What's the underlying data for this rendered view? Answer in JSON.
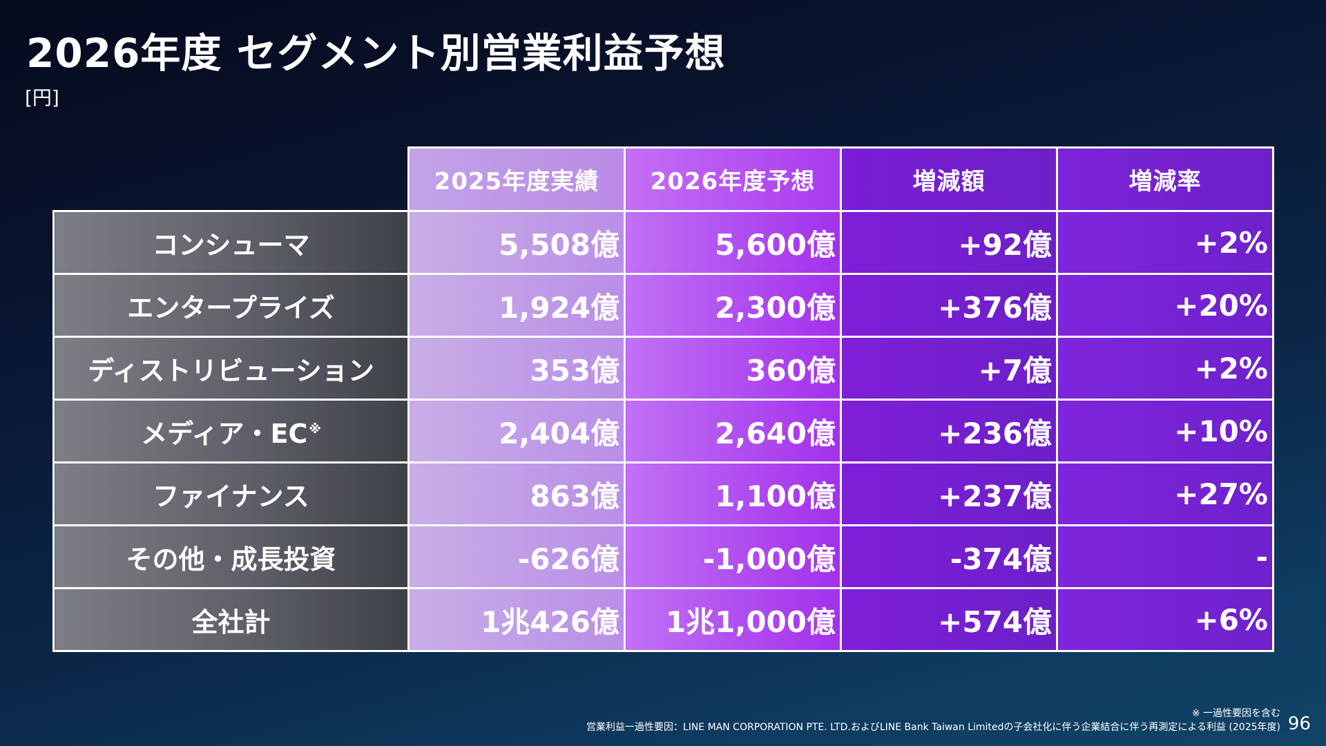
{
  "title": "2026年度 セグメント別営業利益予想",
  "unit": "[円]",
  "table": {
    "headers": [
      "2025年度実績",
      "2026年度予想",
      "増減額",
      "増減率"
    ],
    "rows": [
      {
        "label": "コンシューマ",
        "note_mark": "",
        "v2025": "5,508億",
        "v2026": "5,600億",
        "diff": "+92億",
        "rate": "+2%"
      },
      {
        "label": "エンタープライズ",
        "note_mark": "",
        "v2025": "1,924億",
        "v2026": "2,300億",
        "diff": "+376億",
        "rate": "+20%"
      },
      {
        "label": "ディストリビューション",
        "note_mark": "",
        "v2025": "353億",
        "v2026": "360億",
        "diff": "+7億",
        "rate": "+2%"
      },
      {
        "label": "メディア・EC",
        "note_mark": "※",
        "v2025": "2,404億",
        "v2026": "2,640億",
        "diff": "+236億",
        "rate": "+10%"
      },
      {
        "label": "ファイナンス",
        "note_mark": "",
        "v2025": "863億",
        "v2026": "1,100億",
        "diff": "+237億",
        "rate": "+27%"
      },
      {
        "label": "その他・成長投資",
        "note_mark": "",
        "v2025": "-626億",
        "v2026": "-1,000億",
        "diff": "-374億",
        "rate": "-"
      },
      {
        "label": "全社計",
        "note_mark": "",
        "v2025": "1兆426億",
        "v2026": "1兆1,000億",
        "diff": "+574億",
        "rate": "+6%"
      }
    ]
  },
  "footnotes": {
    "line1": "※ 一過性要因を含む",
    "line2": "営業利益一過性要因：LINE MAN CORPORATION PTE. LTD.およびLINE Bank Taiwan Limitedの子会社化に伴う企業結合に伴う再測定による利益 (2025年度)"
  },
  "page_number": "96",
  "colors": {
    "background_dark": "#060a1e",
    "background_light": "#104466",
    "col_2025": "#c3a3e8",
    "col_2026": "#b24ff0",
    "col_diff": "#761fd2",
    "col_rate": "#7623d3",
    "row_label": "#5d6068"
  }
}
